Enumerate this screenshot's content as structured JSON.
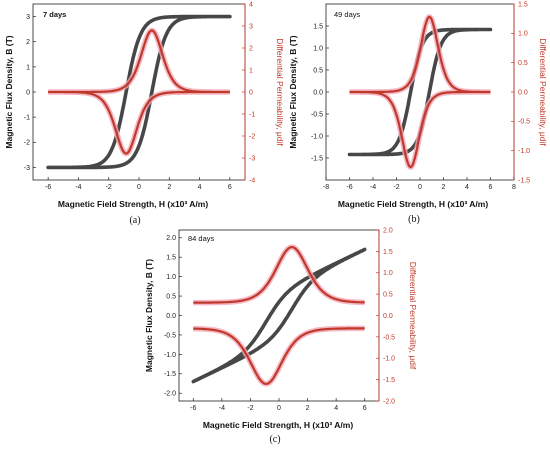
{
  "colors": {
    "bh": "#474747",
    "mu": "#c0392b",
    "mu_halo": "#f1a7b7"
  },
  "chart_data": [
    {
      "type": "line",
      "panel_label": "7 days",
      "caption": "(a)",
      "xlabel": "Magnetic Field Strength, H (x10³ A/m)",
      "ylabel": "Magnetic Flux Density, B (T)",
      "y2label": "Differential Permeability, μdif",
      "xlim": [
        -7,
        7
      ],
      "ylim": [
        -3.5,
        3.5
      ],
      "y2lim": [
        -4,
        4
      ],
      "xticks": [
        -6,
        -4,
        -2,
        0,
        2,
        4,
        6
      ],
      "yticks": [
        -3,
        -2,
        -1,
        0,
        1,
        2,
        3
      ],
      "y2ticks": [
        -4,
        -3,
        -2,
        -1,
        0,
        1,
        2,
        3,
        4
      ],
      "loop": {
        "Bs": 3.0,
        "Hc": 0.85,
        "w": 0.95,
        "Hmax": 6
      },
      "series": [
        {
          "axis": "left",
          "description": "B-H hysteresis loop"
        },
        {
          "axis": "right",
          "description": "differential permeability",
          "peak": 2.8,
          "base": 0.0
        }
      ]
    },
    {
      "type": "line",
      "panel_label": "49 days",
      "caption": "(b)",
      "xlabel": "Magnetic Field Strength, H (x10³ A/m)",
      "ylabel": "Magnetic Flux Density, B (T)",
      "y2label": "Differential Permeability, μdif",
      "xlim": [
        -8,
        8
      ],
      "ylim": [
        -2.0,
        2.0
      ],
      "y2lim": [
        -1.5,
        1.5
      ],
      "xticks": [
        -8,
        -6,
        -4,
        -2,
        0,
        2,
        4,
        6,
        8
      ],
      "yticks": [
        -1.5,
        -1.0,
        -0.5,
        0.0,
        0.5,
        1.0,
        1.5
      ],
      "y2ticks": [
        -1.5,
        -1.0,
        -0.5,
        0.0,
        0.5,
        1.0,
        1.5
      ],
      "loop": {
        "Bs": 1.42,
        "Hc": 0.8,
        "w": 1.0,
        "Hmax": 6
      },
      "series": [
        {
          "axis": "left",
          "description": "B-H hysteresis loop"
        },
        {
          "axis": "right",
          "description": "differential permeability",
          "peak": 1.28,
          "base": 0.0
        }
      ]
    },
    {
      "type": "line",
      "panel_label": "84 days",
      "caption": "(c)",
      "xlabel": "Magnetic Field Strength, H (x10³ A/m)",
      "ylabel": "Magnetic Flux Density, B (T)",
      "y2label": "Differential Permeability, μdif",
      "xlim": [
        -7,
        7
      ],
      "ylim": [
        -2.2,
        2.2
      ],
      "y2lim": [
        -2.0,
        2.0
      ],
      "xticks": [
        -6,
        -4,
        -2,
        0,
        2,
        4,
        6
      ],
      "yticks": [
        -2.0,
        -1.5,
        -1.0,
        -0.5,
        0.0,
        0.5,
        1.0,
        1.5,
        2.0
      ],
      "y2ticks": [
        -2.0,
        -1.5,
        -1.0,
        -0.5,
        0.0,
        0.5,
        1.0,
        1.5,
        2.0
      ],
      "loop": {
        "Bs": 1.7,
        "Hc": 0.9,
        "w": 1.5,
        "Hmax": 6,
        "linear": true
      },
      "series": [
        {
          "axis": "left",
          "description": "B-H hysteresis loop"
        },
        {
          "axis": "right",
          "description": "differential permeability",
          "peak": 1.6,
          "base": 0.3
        }
      ]
    }
  ]
}
